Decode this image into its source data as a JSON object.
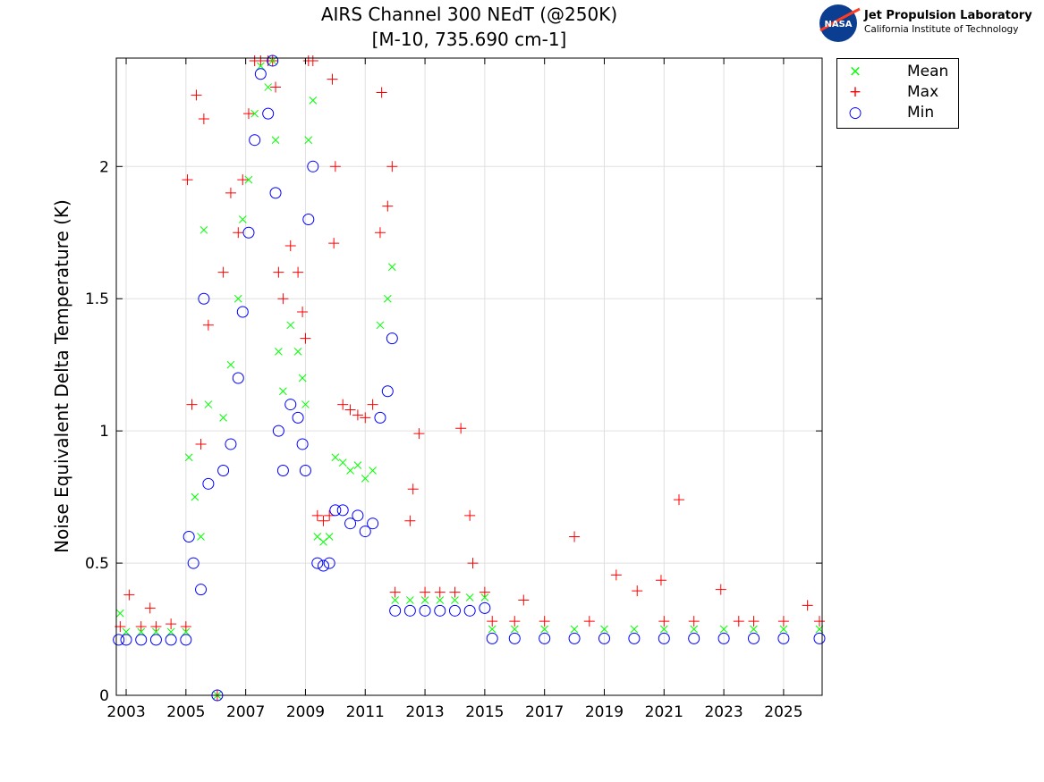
{
  "header": {
    "title_line1": "AIRS Channel 300 NEdT (@250K)",
    "title_line2": "[M-10, 735.690 cm-1]"
  },
  "logo": {
    "name": "NASA",
    "line1": "Jet Propulsion Laboratory",
    "line2": "California Institute of Technology"
  },
  "chart_data": {
    "type": "scatter",
    "title": "AIRS Channel 300 NEdT (@250K) [M-10, 735.690 cm-1]",
    "xlabel": "",
    "ylabel": "Noise Equivalent Delta Temperature (K)",
    "xlim": [
      2002.67,
      2026.29
    ],
    "ylim": [
      0,
      2.41
    ],
    "xticks": [
      "2003",
      "2005",
      "2007",
      "2009",
      "2011",
      "2013",
      "2015",
      "2017",
      "2019",
      "2021",
      "2023",
      "2025"
    ],
    "yticks": [
      "0",
      "0.5",
      "1",
      "1.5",
      "2"
    ],
    "grid": true,
    "legend": "outside-top-right",
    "series": [
      {
        "name": "Mean",
        "color": "#00ff00",
        "marker": "x",
        "points": [
          [
            2002.8,
            0.31
          ],
          [
            2003,
            0.24
          ],
          [
            2003.5,
            0.24
          ],
          [
            2004,
            0.24
          ],
          [
            2004.5,
            0.24
          ],
          [
            2005,
            0.24
          ],
          [
            2005.1,
            0.9
          ],
          [
            2005.3,
            0.75
          ],
          [
            2005.5,
            0.6
          ],
          [
            2005.6,
            1.76
          ],
          [
            2005.75,
            1.1
          ],
          [
            2006.05,
            0
          ],
          [
            2006.25,
            1.05
          ],
          [
            2006.5,
            1.25
          ],
          [
            2006.75,
            1.5
          ],
          [
            2006.9,
            1.8
          ],
          [
            2007.1,
            1.95
          ],
          [
            2007.3,
            2.2
          ],
          [
            2007.5,
            2.38
          ],
          [
            2007.75,
            2.3
          ],
          [
            2007.9,
            2.4
          ],
          [
            2008.0,
            2.1
          ],
          [
            2008.1,
            1.3
          ],
          [
            2008.25,
            1.15
          ],
          [
            2008.5,
            1.4
          ],
          [
            2008.75,
            1.3
          ],
          [
            2008.9,
            1.2
          ],
          [
            2009.0,
            1.1
          ],
          [
            2009.1,
            2.1
          ],
          [
            2009.25,
            2.25
          ],
          [
            2009.4,
            0.6
          ],
          [
            2009.6,
            0.58
          ],
          [
            2009.8,
            0.6
          ],
          [
            2010,
            0.9
          ],
          [
            2010.25,
            0.88
          ],
          [
            2010.5,
            0.85
          ],
          [
            2010.75,
            0.87
          ],
          [
            2011,
            0.82
          ],
          [
            2011.25,
            0.85
          ],
          [
            2011.5,
            1.4
          ],
          [
            2011.75,
            1.5
          ],
          [
            2011.9,
            1.62
          ],
          [
            2012,
            0.36
          ],
          [
            2012.5,
            0.36
          ],
          [
            2013,
            0.36
          ],
          [
            2013.5,
            0.36
          ],
          [
            2014,
            0.36
          ],
          [
            2014.5,
            0.37
          ],
          [
            2015,
            0.37
          ],
          [
            2015.25,
            0.25
          ],
          [
            2016,
            0.25
          ],
          [
            2017,
            0.25
          ],
          [
            2018,
            0.25
          ],
          [
            2019,
            0.25
          ],
          [
            2020,
            0.25
          ],
          [
            2021,
            0.25
          ],
          [
            2022,
            0.25
          ],
          [
            2023,
            0.25
          ],
          [
            2024,
            0.25
          ],
          [
            2025,
            0.25
          ],
          [
            2026.2,
            0.25
          ]
        ]
      },
      {
        "name": "Max",
        "color": "#ff0000",
        "marker": "+",
        "points": [
          [
            2002.8,
            0.26
          ],
          [
            2003.1,
            0.38
          ],
          [
            2003.5,
            0.26
          ],
          [
            2003.8,
            0.33
          ],
          [
            2004,
            0.26
          ],
          [
            2004.5,
            0.27
          ],
          [
            2005,
            0.26
          ],
          [
            2005.05,
            1.95
          ],
          [
            2005.2,
            1.1
          ],
          [
            2005.35,
            2.27
          ],
          [
            2005.5,
            0.95
          ],
          [
            2005.6,
            2.18
          ],
          [
            2005.75,
            1.4
          ],
          [
            2006.05,
            0
          ],
          [
            2006.25,
            1.6
          ],
          [
            2006.5,
            1.9
          ],
          [
            2006.75,
            1.75
          ],
          [
            2006.9,
            1.95
          ],
          [
            2007.1,
            2.2
          ],
          [
            2007.3,
            2.4
          ],
          [
            2007.5,
            2.4
          ],
          [
            2007.75,
            2.4
          ],
          [
            2007.9,
            2.4
          ],
          [
            2008.0,
            2.3
          ],
          [
            2008.1,
            1.6
          ],
          [
            2008.25,
            1.5
          ],
          [
            2008.5,
            1.7
          ],
          [
            2008.75,
            1.6
          ],
          [
            2008.9,
            1.45
          ],
          [
            2009.0,
            1.35
          ],
          [
            2009.1,
            2.4
          ],
          [
            2009.25,
            2.4
          ],
          [
            2009.4,
            0.68
          ],
          [
            2009.6,
            0.66
          ],
          [
            2009.8,
            0.68
          ],
          [
            2009.95,
            1.71
          ],
          [
            2010,
            2.0
          ],
          [
            2009.9,
            2.33
          ],
          [
            2010.25,
            1.1
          ],
          [
            2010.5,
            1.08
          ],
          [
            2010.75,
            1.06
          ],
          [
            2011,
            1.05
          ],
          [
            2011.25,
            1.1
          ],
          [
            2011.5,
            1.75
          ],
          [
            2011.55,
            2.28
          ],
          [
            2011.75,
            1.85
          ],
          [
            2011.9,
            2.0
          ],
          [
            2012,
            0.39
          ],
          [
            2012.5,
            0.66
          ],
          [
            2012.6,
            0.78
          ],
          [
            2012.8,
            0.99
          ],
          [
            2013,
            0.39
          ],
          [
            2013.5,
            0.39
          ],
          [
            2014,
            0.39
          ],
          [
            2014.2,
            1.01
          ],
          [
            2014.5,
            0.68
          ],
          [
            2014.6,
            0.5
          ],
          [
            2015,
            0.39
          ],
          [
            2015.25,
            0.28
          ],
          [
            2016,
            0.28
          ],
          [
            2016.3,
            0.36
          ],
          [
            2017,
            0.28
          ],
          [
            2018,
            0.6
          ],
          [
            2018.5,
            0.28
          ],
          [
            2019.4,
            0.455
          ],
          [
            2020.1,
            0.395
          ],
          [
            2020.9,
            0.435
          ],
          [
            2021,
            0.28
          ],
          [
            2021.5,
            0.74
          ],
          [
            2022,
            0.28
          ],
          [
            2022.9,
            0.4
          ],
          [
            2023.5,
            0.28
          ],
          [
            2024,
            0.28
          ],
          [
            2025,
            0.28
          ],
          [
            2025.8,
            0.34
          ],
          [
            2026.2,
            0.28
          ]
        ]
      },
      {
        "name": "Min",
        "color": "#0000ff",
        "marker": "o",
        "points": [
          [
            2002.75,
            0.21
          ],
          [
            2003,
            0.21
          ],
          [
            2003.5,
            0.21
          ],
          [
            2004,
            0.21
          ],
          [
            2004.5,
            0.21
          ],
          [
            2005,
            0.21
          ],
          [
            2005.1,
            0.6
          ],
          [
            2005.25,
            0.5
          ],
          [
            2005.5,
            0.4
          ],
          [
            2005.6,
            1.5
          ],
          [
            2005.75,
            0.8
          ],
          [
            2006.05,
            0
          ],
          [
            2006.25,
            0.85
          ],
          [
            2006.5,
            0.95
          ],
          [
            2006.75,
            1.2
          ],
          [
            2006.9,
            1.45
          ],
          [
            2007.1,
            1.75
          ],
          [
            2007.3,
            2.1
          ],
          [
            2007.5,
            2.35
          ],
          [
            2007.75,
            2.2
          ],
          [
            2007.9,
            2.4
          ],
          [
            2008.0,
            1.9
          ],
          [
            2008.1,
            1.0
          ],
          [
            2008.25,
            0.85
          ],
          [
            2008.5,
            1.1
          ],
          [
            2008.75,
            1.05
          ],
          [
            2008.9,
            0.95
          ],
          [
            2009.0,
            0.85
          ],
          [
            2009.1,
            1.8
          ],
          [
            2009.25,
            2.0
          ],
          [
            2009.4,
            0.5
          ],
          [
            2009.6,
            0.49
          ],
          [
            2009.8,
            0.5
          ],
          [
            2010,
            0.7
          ],
          [
            2010.25,
            0.7
          ],
          [
            2010.5,
            0.65
          ],
          [
            2010.75,
            0.68
          ],
          [
            2011,
            0.62
          ],
          [
            2011.25,
            0.65
          ],
          [
            2011.5,
            1.05
          ],
          [
            2011.75,
            1.15
          ],
          [
            2011.9,
            1.35
          ],
          [
            2012,
            0.32
          ],
          [
            2012.5,
            0.32
          ],
          [
            2013,
            0.32
          ],
          [
            2013.5,
            0.32
          ],
          [
            2014,
            0.32
          ],
          [
            2014.5,
            0.32
          ],
          [
            2015,
            0.33
          ],
          [
            2015.25,
            0.215
          ],
          [
            2016,
            0.215
          ],
          [
            2017,
            0.215
          ],
          [
            2018,
            0.215
          ],
          [
            2019,
            0.215
          ],
          [
            2020,
            0.215
          ],
          [
            2021,
            0.215
          ],
          [
            2022,
            0.215
          ],
          [
            2023,
            0.215
          ],
          [
            2024,
            0.215
          ],
          [
            2025,
            0.215
          ],
          [
            2026.2,
            0.215
          ]
        ]
      }
    ]
  }
}
